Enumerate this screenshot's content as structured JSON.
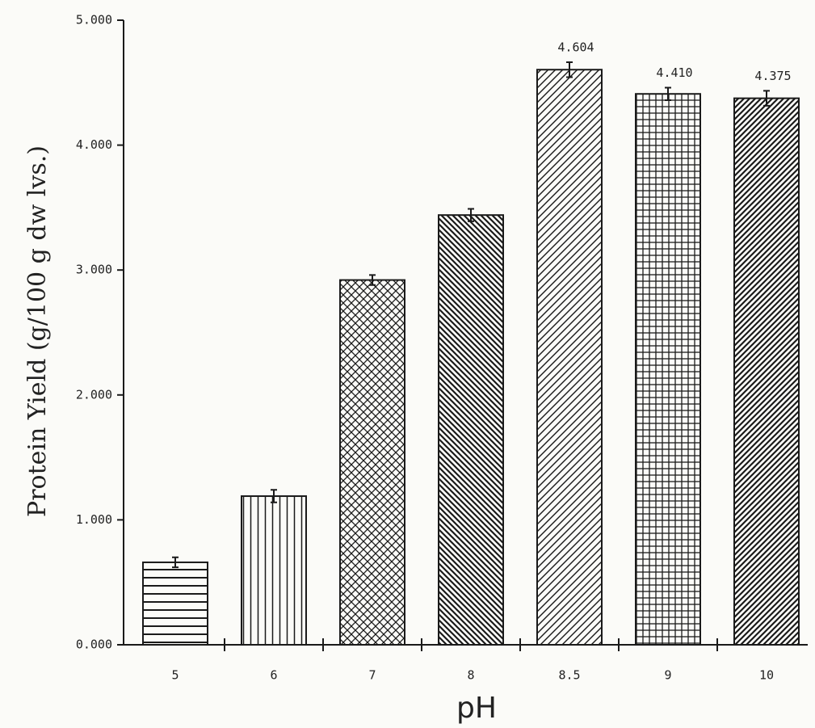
{
  "chart_data": {
    "type": "bar",
    "y_label": "Protein Yield (g/100 g dw lvs.)",
    "x_label": "pH",
    "categories": [
      "5",
      "6",
      "7",
      "8",
      "8.5",
      "9",
      "10"
    ],
    "values": [
      0.66,
      1.19,
      2.92,
      3.44,
      4.604,
      4.41,
      4.375
    ],
    "value_labels": [
      null,
      null,
      null,
      null,
      "4.604",
      "4.410",
      "4.375"
    ],
    "errors": [
      0.04,
      0.05,
      0.04,
      0.05,
      0.06,
      0.05,
      0.06
    ],
    "color": "#1a1a1a",
    "ylim": [
      0,
      5
    ],
    "yticks": [
      {
        "value": 0,
        "label": "0.000"
      },
      {
        "value": 1,
        "label": "1.000"
      },
      {
        "value": 2,
        "label": "2.000"
      },
      {
        "value": 3,
        "label": "3.000"
      },
      {
        "value": 4,
        "label": "4.000"
      },
      {
        "value": 5,
        "label": "5.000"
      }
    ],
    "grid": false
  }
}
